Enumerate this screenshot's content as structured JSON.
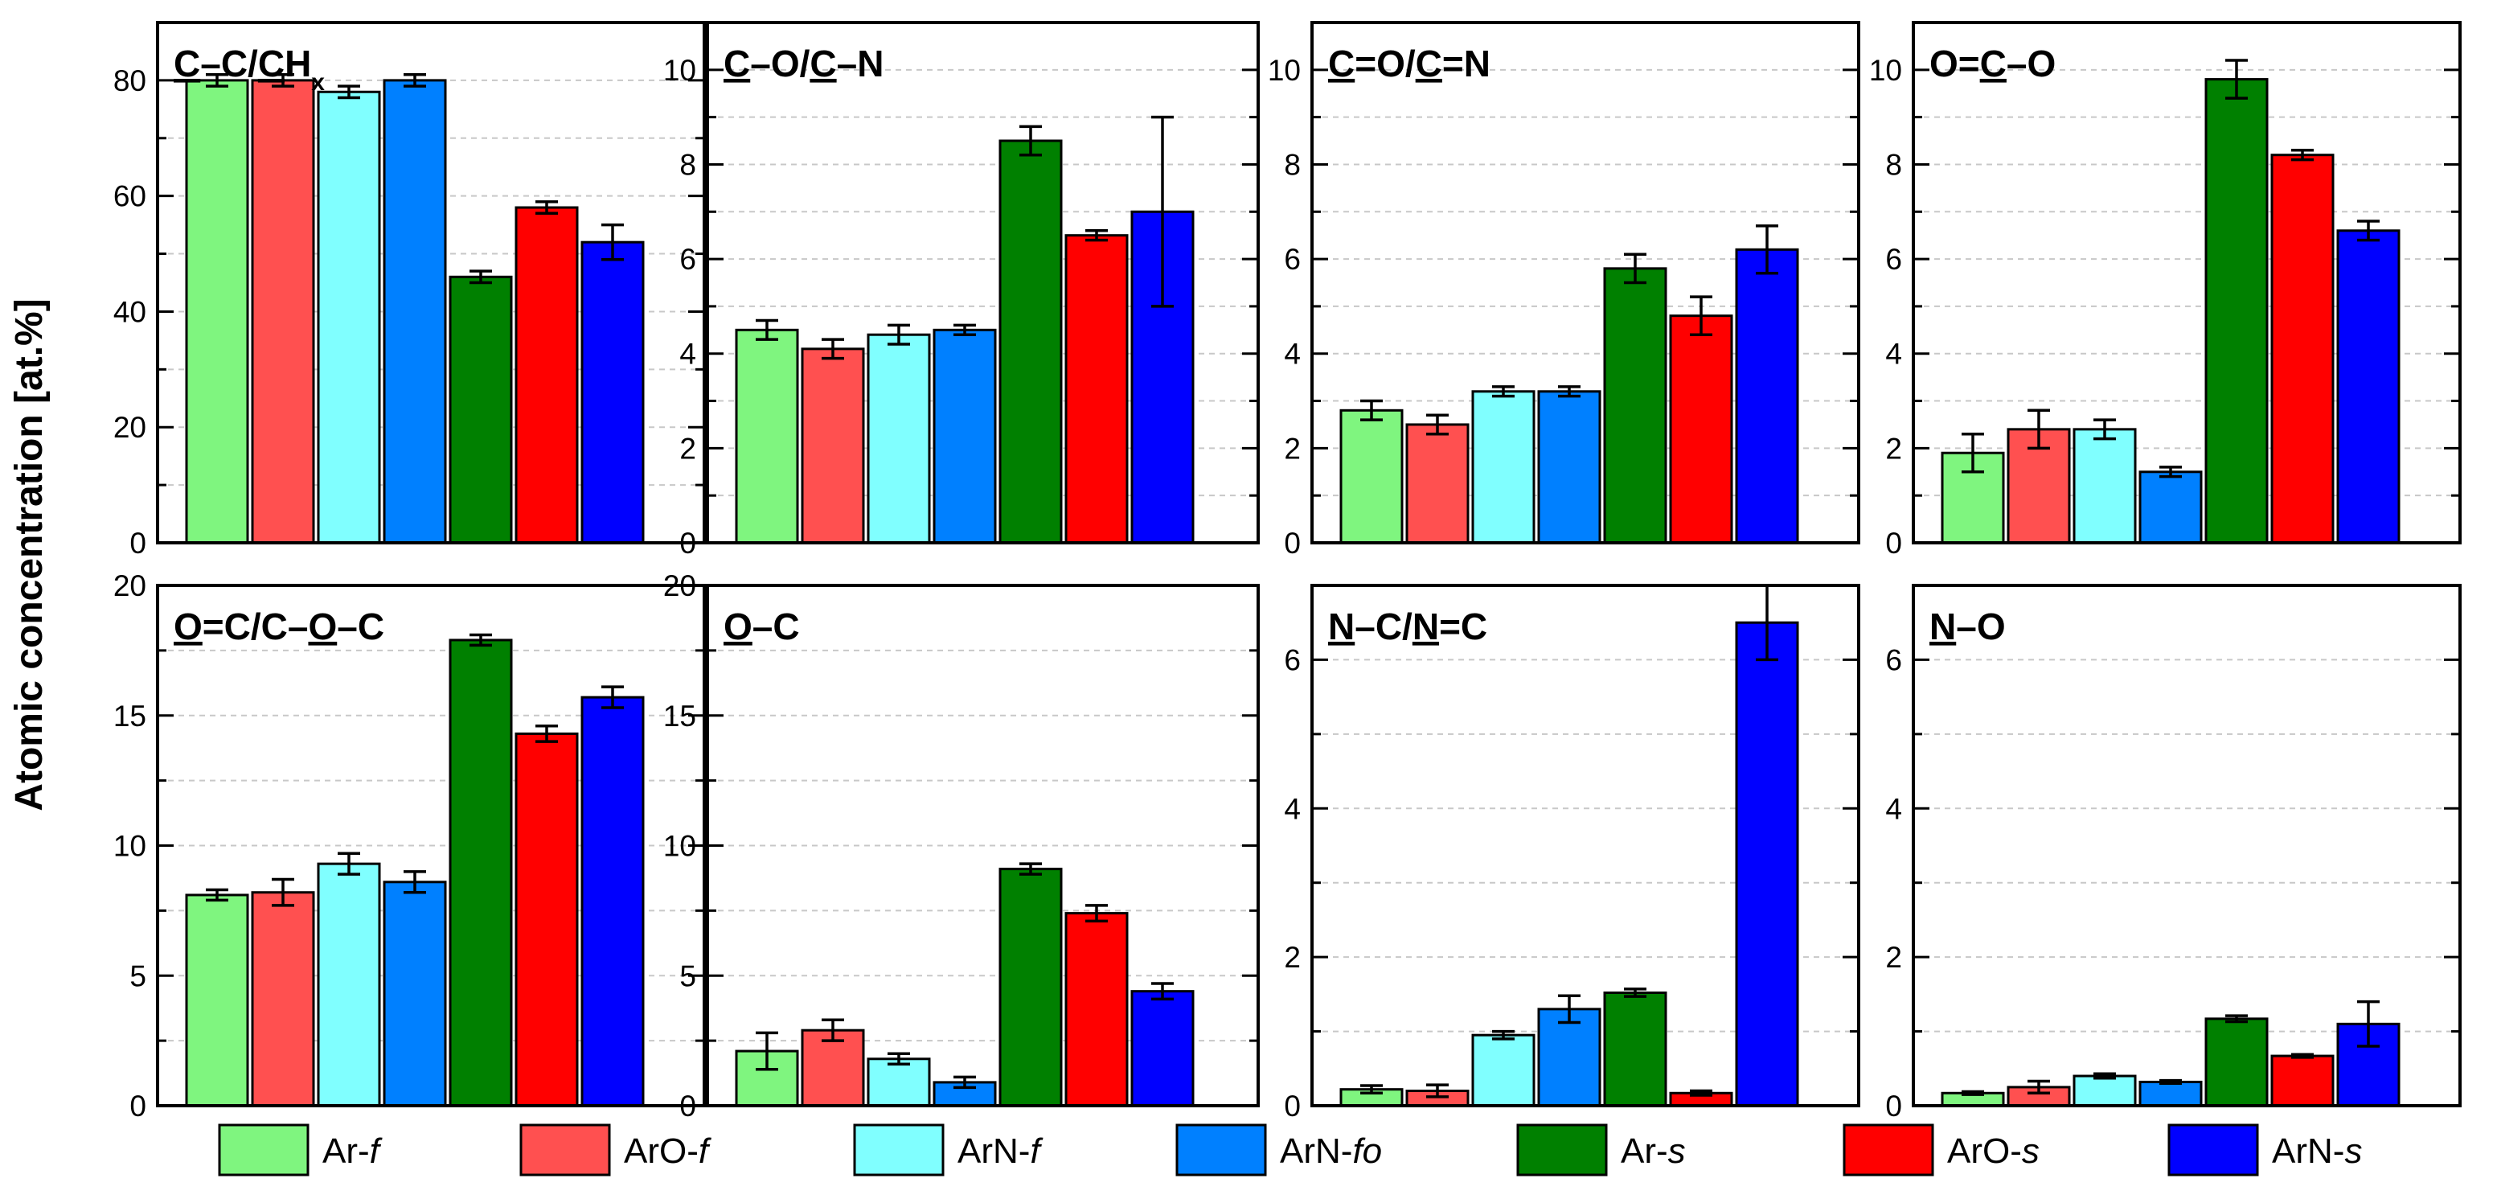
{
  "chart_data": {
    "type": "bar",
    "ylabel": "Atomic concentration [at.%]",
    "grid": "horizontal dashed",
    "legend_position": "bottom",
    "series_colors": [
      "#7ff57f",
      "#ff5050",
      "#80ffff",
      "#0080ff",
      "#008000",
      "#ff0000",
      "#0000ff"
    ],
    "legend": [
      {
        "base": "Ar-",
        "suffix": "f"
      },
      {
        "base": "ArO-",
        "suffix": "f"
      },
      {
        "base": "ArN-",
        "suffix": "f"
      },
      {
        "base": "ArN-",
        "suffix": "fo"
      },
      {
        "base": "Ar-",
        "suffix": "s"
      },
      {
        "base": "ArO-",
        "suffix": "s"
      },
      {
        "base": "ArN-",
        "suffix": "s"
      }
    ],
    "panels": [
      {
        "id": "cc",
        "title_parts": [
          {
            "t": "C",
            "u": true
          },
          {
            "t": "–C/"
          },
          {
            "t": "C",
            "u": true
          },
          {
            "t": "H"
          },
          {
            "t": "x",
            "sub": true
          }
        ],
        "ylim": [
          0,
          90
        ],
        "ticks": [
          0,
          20,
          40,
          60,
          80
        ],
        "minor": [
          10,
          30,
          50,
          70
        ],
        "values": [
          80,
          80,
          78,
          80,
          46,
          58,
          52
        ],
        "errors": [
          1,
          1,
          1,
          1,
          1,
          1,
          3
        ]
      },
      {
        "id": "co",
        "title_parts": [
          {
            "t": "C",
            "u": true
          },
          {
            "t": "–O/"
          },
          {
            "t": "C",
            "u": true
          },
          {
            "t": "–N"
          }
        ],
        "ylim": [
          0,
          11
        ],
        "ticks": [
          0,
          2,
          4,
          6,
          8,
          10
        ],
        "minor": [
          1,
          3,
          5,
          7,
          9
        ],
        "values": [
          4.5,
          4.1,
          4.4,
          4.5,
          8.5,
          6.5,
          7.0
        ],
        "errors": [
          0.2,
          0.2,
          0.2,
          0.1,
          0.3,
          0.1,
          2.0
        ]
      },
      {
        "id": "cdo",
        "title_parts": [
          {
            "t": "C",
            "u": true
          },
          {
            "t": "=O/"
          },
          {
            "t": "C",
            "u": true
          },
          {
            "t": "=N"
          }
        ],
        "ylim": [
          0,
          11
        ],
        "ticks": [
          0,
          2,
          4,
          6,
          8,
          10
        ],
        "minor": [
          1,
          3,
          5,
          7,
          9
        ],
        "values": [
          2.8,
          2.5,
          3.2,
          3.2,
          5.8,
          4.8,
          6.2
        ],
        "errors": [
          0.2,
          0.2,
          0.1,
          0.1,
          0.3,
          0.4,
          0.5
        ]
      },
      {
        "id": "oco",
        "title_parts": [
          {
            "t": "O="
          },
          {
            "t": "C",
            "u": true
          },
          {
            "t": "–O"
          }
        ],
        "ylim": [
          0,
          11
        ],
        "ticks": [
          0,
          2,
          4,
          6,
          8,
          10
        ],
        "minor": [
          1,
          3,
          5,
          7,
          9
        ],
        "values": [
          1.9,
          2.4,
          2.4,
          1.5,
          9.8,
          8.2,
          6.6
        ],
        "errors": [
          0.4,
          0.4,
          0.2,
          0.1,
          0.4,
          0.1,
          0.2
        ]
      },
      {
        "id": "odc",
        "title_parts": [
          {
            "t": "O",
            "u": true
          },
          {
            "t": "=C/C–"
          },
          {
            "t": "O",
            "u": true
          },
          {
            "t": "–C"
          }
        ],
        "ylim": [
          0,
          20
        ],
        "ticks": [
          0,
          5,
          10,
          15,
          20
        ],
        "minor": [
          2.5,
          7.5,
          12.5,
          17.5
        ],
        "values": [
          8.1,
          8.2,
          9.3,
          8.6,
          17.9,
          14.3,
          15.7
        ],
        "errors": [
          0.2,
          0.5,
          0.4,
          0.4,
          0.2,
          0.3,
          0.4
        ]
      },
      {
        "id": "oc",
        "title_parts": [
          {
            "t": "O",
            "u": true
          },
          {
            "t": "–C"
          }
        ],
        "ylim": [
          0,
          20
        ],
        "ticks": [
          0,
          5,
          10,
          15,
          20
        ],
        "minor": [
          2.5,
          7.5,
          12.5,
          17.5
        ],
        "values": [
          2.1,
          2.9,
          1.8,
          0.9,
          9.1,
          7.4,
          4.4
        ],
        "errors": [
          0.7,
          0.4,
          0.2,
          0.2,
          0.2,
          0.3,
          0.3
        ]
      },
      {
        "id": "nc",
        "title_parts": [
          {
            "t": "N",
            "u": true
          },
          {
            "t": "–C/"
          },
          {
            "t": "N",
            "u": true
          },
          {
            "t": "=C"
          }
        ],
        "ylim": [
          0,
          7
        ],
        "ticks": [
          0,
          2,
          4,
          6
        ],
        "minor": [
          1,
          3,
          5,
          7
        ],
        "values": [
          0.22,
          0.2,
          0.95,
          1.3,
          1.52,
          0.17,
          6.5
        ],
        "errors": [
          0.05,
          0.08,
          0.05,
          0.18,
          0.05,
          0.03,
          0.5
        ]
      },
      {
        "id": "no",
        "title_parts": [
          {
            "t": "N",
            "u": true
          },
          {
            "t": "–O"
          }
        ],
        "ylim": [
          0,
          7
        ],
        "ticks": [
          0,
          2,
          4,
          6
        ],
        "minor": [
          1,
          3,
          5,
          7
        ],
        "values": [
          0.17,
          0.25,
          0.4,
          0.32,
          1.17,
          0.67,
          1.1
        ],
        "errors": [
          0.02,
          0.08,
          0.03,
          0.02,
          0.04,
          0.02,
          0.3
        ]
      }
    ]
  }
}
